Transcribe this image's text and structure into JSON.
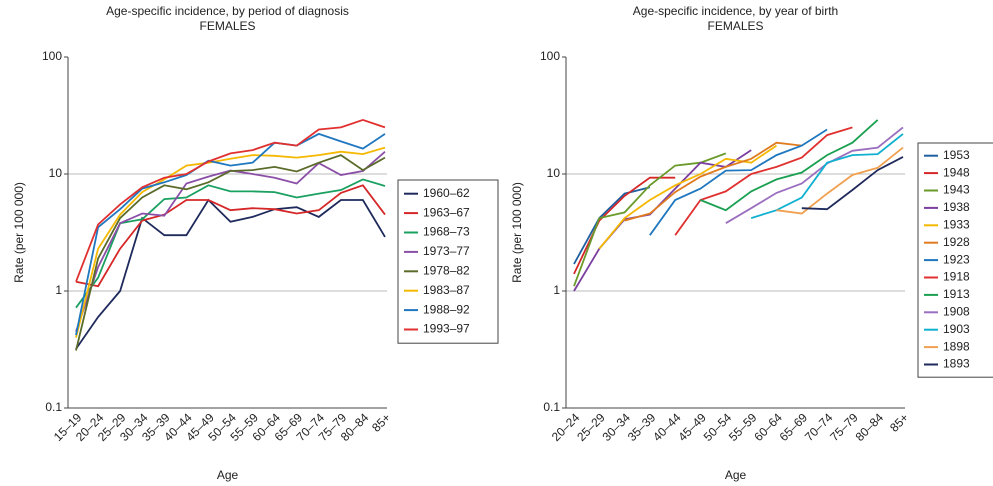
{
  "chart_data": [
    {
      "type": "line",
      "title": "Age-specific incidence, by period of diagnosis",
      "subtitle": "FEMALES",
      "x_label": "Age",
      "y_label": "Rate (per 100 000)",
      "log_scale": true,
      "grid": true,
      "legend": "right",
      "ylim": [
        0.1,
        100
      ],
      "yticks": [
        0.1,
        1,
        10,
        100
      ],
      "categories": [
        "15–19",
        "20–24",
        "25–29",
        "30–34",
        "35–39",
        "40–44",
        "45–49",
        "50–54",
        "55–59",
        "60–64",
        "65–69",
        "70–74",
        "75–79",
        "80–84",
        "85+"
      ],
      "series": [
        {
          "name": "1960–62",
          "color": "#1f2a5c",
          "values": [
            0.32,
            0.6,
            1.0,
            4.2,
            3.0,
            3.0,
            6.0,
            3.9,
            4.3,
            5.0,
            5.2,
            4.3,
            6.0,
            6.0,
            2.9
          ]
        },
        {
          "name": "1963–67",
          "color": "#d62728",
          "values": [
            1.2,
            1.1,
            2.3,
            4.0,
            4.5,
            6.0,
            6.0,
            4.9,
            5.1,
            5.0,
            4.6,
            4.9,
            6.9,
            8.0,
            4.5
          ]
        },
        {
          "name": "1968–73",
          "color": "#1aa060",
          "values": [
            0.72,
            1.3,
            3.8,
            4.1,
            6.1,
            6.3,
            8.0,
            7.1,
            7.1,
            7.0,
            6.3,
            6.8,
            7.3,
            9.0,
            7.9
          ]
        },
        {
          "name": "1973–77",
          "color": "#8b4fa8",
          "values": [
            0.45,
            1.6,
            3.8,
            4.6,
            4.4,
            8.3,
            9.5,
            10.7,
            10.0,
            9.3,
            8.3,
            12.4,
            9.8,
            10.6,
            15.5
          ]
        },
        {
          "name": "1978–82",
          "color": "#5a6b2a",
          "values": [
            0.31,
            1.9,
            4.2,
            6.3,
            8.0,
            7.4,
            8.5,
            10.6,
            10.8,
            11.5,
            10.5,
            12.5,
            14.5,
            10.8,
            13.8
          ]
        },
        {
          "name": "1983–87",
          "color": "#f5b800",
          "values": [
            0.4,
            2.3,
            4.5,
            7.0,
            9.0,
            11.8,
            12.5,
            13.5,
            14.5,
            14.3,
            13.8,
            14.5,
            15.5,
            14.8,
            16.8
          ]
        },
        {
          "name": "1988–92",
          "color": "#1f77c0",
          "values": [
            0.42,
            3.5,
            5.0,
            7.5,
            8.5,
            9.8,
            13.0,
            11.8,
            12.5,
            18.5,
            17.5,
            22.0,
            19.0,
            16.5,
            22.0
          ]
        },
        {
          "name": "1993–97",
          "color": "#e03030",
          "values": [
            1.2,
            3.7,
            5.5,
            7.7,
            9.3,
            10.0,
            12.8,
            15.0,
            16.0,
            18.5,
            17.5,
            24.0,
            25.0,
            29.0,
            25.0
          ]
        }
      ]
    },
    {
      "type": "line",
      "title": "Age-specific incidence, by year of birth",
      "subtitle": "FEMALES",
      "x_label": "Age",
      "y_label": "Rate (per 100 000)",
      "log_scale": true,
      "grid": true,
      "legend": "right",
      "ylim": [
        0.1,
        100
      ],
      "yticks": [
        0.1,
        1,
        10,
        100
      ],
      "categories": [
        "20–24",
        "25–29",
        "30–34",
        "35–39",
        "40–44",
        "45–49",
        "50–54",
        "55–59",
        "60–64",
        "65–69",
        "70–74",
        "75–79",
        "80–84",
        "85+"
      ],
      "series": [
        {
          "name": "1953",
          "color": "#1f5f9f",
          "values": [
            1.7,
            4.2,
            6.8,
            7.7,
            null,
            null,
            null,
            null,
            null,
            null,
            null,
            null,
            null,
            null
          ]
        },
        {
          "name": "1948",
          "color": "#d62728",
          "values": [
            1.4,
            4.0,
            6.5,
            9.3,
            9.3,
            null,
            null,
            null,
            null,
            null,
            null,
            null,
            null,
            null
          ]
        },
        {
          "name": "1943",
          "color": "#6a9a2a",
          "values": [
            1.1,
            4.2,
            4.7,
            8.0,
            11.8,
            12.5,
            15.0,
            null,
            null,
            null,
            null,
            null,
            null,
            null
          ]
        },
        {
          "name": "1938",
          "color": "#7b3fa0",
          "values": [
            1.0,
            2.3,
            4.1,
            4.5,
            7.5,
            12.5,
            11.5,
            16.0,
            null,
            null,
            null,
            null,
            null,
            null
          ]
        },
        {
          "name": "1933",
          "color": "#f5b800",
          "values": [
            null,
            2.3,
            4.2,
            6.0,
            8.0,
            10.0,
            13.5,
            12.5,
            17.5,
            null,
            null,
            null,
            null,
            null
          ]
        },
        {
          "name": "1928",
          "color": "#e07b20",
          "values": [
            null,
            null,
            4.0,
            4.6,
            7.0,
            9.5,
            11.5,
            13.5,
            18.5,
            17.5,
            null,
            null,
            null,
            null
          ]
        },
        {
          "name": "1923",
          "color": "#1f77c0",
          "values": [
            null,
            null,
            null,
            3.0,
            6.0,
            7.5,
            10.7,
            10.8,
            14.5,
            17.5,
            24.0,
            null,
            null,
            null
          ]
        },
        {
          "name": "1918",
          "color": "#e03030",
          "values": [
            null,
            null,
            null,
            null,
            3.0,
            6.0,
            7.1,
            10.0,
            11.5,
            13.8,
            21.5,
            25.0,
            null,
            null
          ]
        },
        {
          "name": "1913",
          "color": "#1aa050",
          "values": [
            null,
            null,
            null,
            null,
            null,
            6.0,
            4.9,
            7.1,
            9.0,
            10.3,
            14.5,
            18.5,
            29.0,
            null
          ]
        },
        {
          "name": "1908",
          "color": "#9b6fc0",
          "values": [
            null,
            null,
            null,
            null,
            null,
            null,
            3.8,
            5.1,
            6.9,
            8.3,
            12.3,
            15.8,
            16.8,
            25.0
          ]
        },
        {
          "name": "1903",
          "color": "#10b0d0",
          "values": [
            null,
            null,
            null,
            null,
            null,
            null,
            null,
            4.2,
            4.9,
            6.3,
            12.5,
            14.5,
            14.8,
            22.0
          ]
        },
        {
          "name": "1898",
          "color": "#f0a050",
          "values": [
            null,
            null,
            null,
            null,
            null,
            null,
            null,
            null,
            4.9,
            4.6,
            6.8,
            9.8,
            11.3,
            16.8
          ]
        },
        {
          "name": "1893",
          "color": "#1f2a5c",
          "values": [
            null,
            null,
            null,
            null,
            null,
            null,
            null,
            null,
            null,
            5.1,
            5.0,
            7.3,
            10.8,
            14.0
          ]
        }
      ]
    }
  ]
}
